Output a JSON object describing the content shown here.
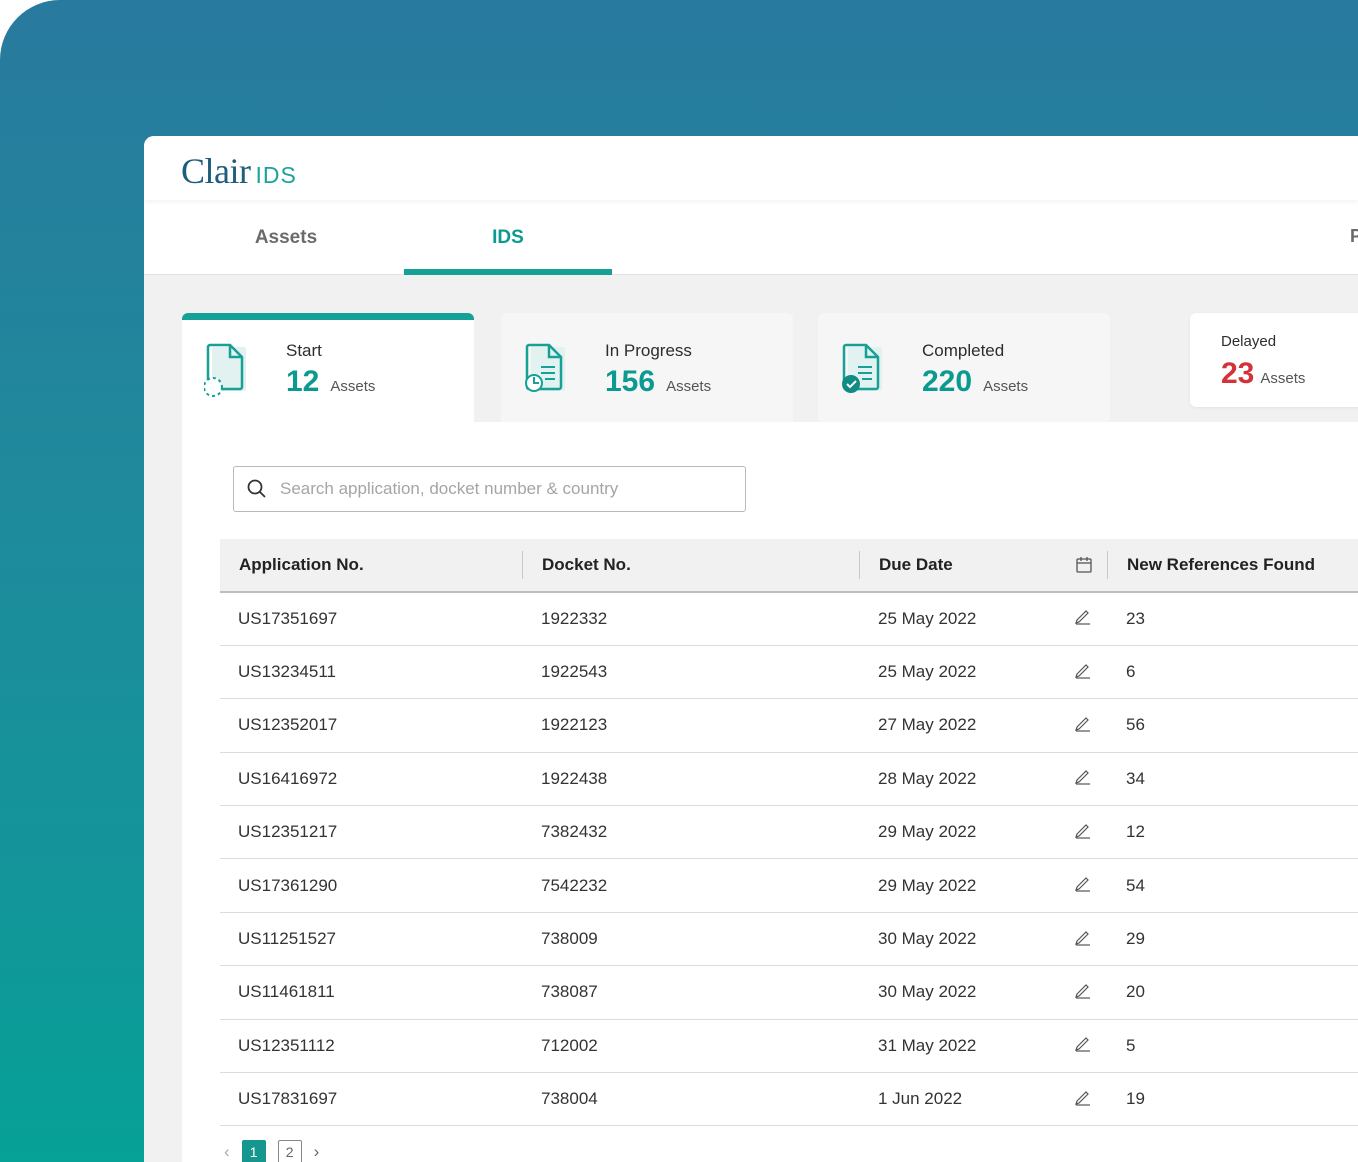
{
  "app": {
    "logo_main": "Clair",
    "logo_sub": "IDS"
  },
  "tabs": [
    {
      "label": "Assets",
      "active": false
    },
    {
      "label": "IDS",
      "active": true
    }
  ],
  "tab_more_label": "P",
  "stats": [
    {
      "label": "Start",
      "value": "12",
      "unit": "Assets"
    },
    {
      "label": "In Progress",
      "value": "156",
      "unit": "Assets"
    },
    {
      "label": "Completed",
      "value": "220",
      "unit": "Assets"
    },
    {
      "label": "Delayed",
      "value": "23",
      "unit": "Assets"
    }
  ],
  "search": {
    "placeholder": "Search application, docket number & country",
    "value": ""
  },
  "table": {
    "columns": [
      "Application No.",
      "Docket No.",
      "Due Date",
      "New References Found"
    ],
    "rows": [
      {
        "app": "US17351697",
        "docket": "1922332",
        "due": "25 May 2022",
        "refs": "23"
      },
      {
        "app": "US13234511",
        "docket": "1922543",
        "due": "25 May 2022",
        "refs": "6"
      },
      {
        "app": "US12352017",
        "docket": "1922123",
        "due": "27 May 2022",
        "refs": "56"
      },
      {
        "app": "US16416972",
        "docket": "1922438",
        "due": "28 May 2022",
        "refs": "34"
      },
      {
        "app": "US12351217",
        "docket": "7382432",
        "due": "29 May 2022",
        "refs": "12"
      },
      {
        "app": "US17361290",
        "docket": "7542232",
        "due": "29 May 2022",
        "refs": "54"
      },
      {
        "app": "US11251527",
        "docket": "738009",
        "due": "30 May 2022",
        "refs": "29"
      },
      {
        "app": "US11461811",
        "docket": "738087",
        "due": "30 May 2022",
        "refs": "20"
      },
      {
        "app": "US12351112",
        "docket": "712002",
        "due": "31 May 2022",
        "refs": "5"
      },
      {
        "app": "US17831697",
        "docket": "738004",
        "due": "1 Jun 2022",
        "refs": "19"
      }
    ]
  },
  "pagination": {
    "pages": [
      "1",
      "2"
    ],
    "current": "1"
  },
  "colors": {
    "accent": "#17a096",
    "delayed": "#d2333a",
    "logo": "#1f5e7a"
  }
}
